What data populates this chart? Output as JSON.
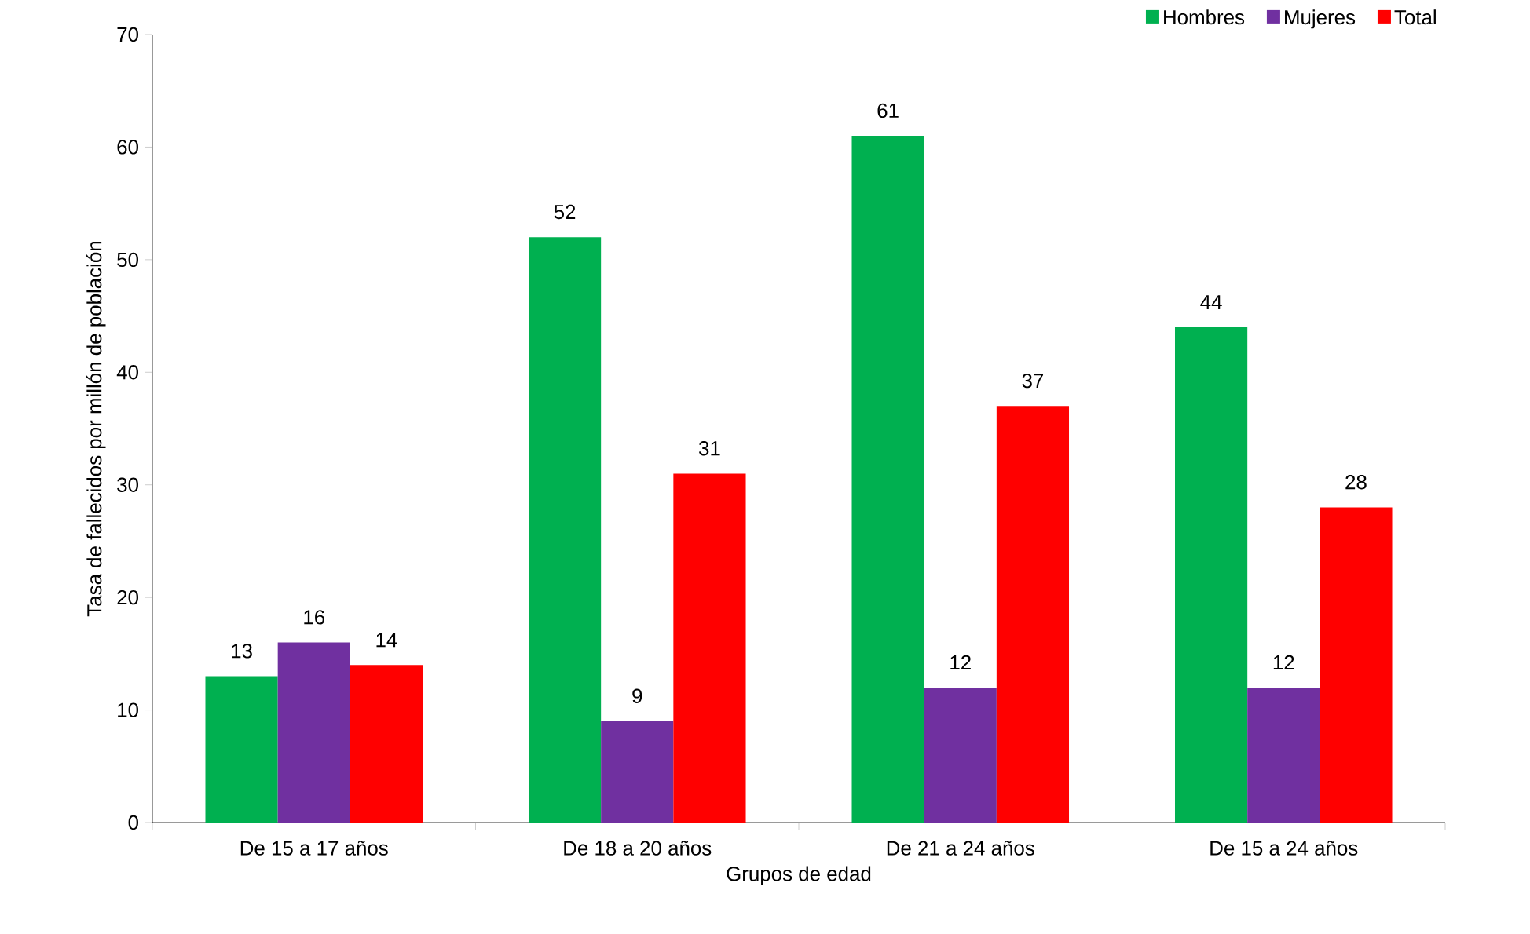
{
  "chart_data": {
    "type": "bar",
    "xlabel": "Grupos de edad",
    "ylabel": "Tasa de fallecidos por millón de población",
    "categories": [
      "De 15 a 17 años",
      "De 18 a 20 años",
      "De 21 a 24 años",
      "De 15 a 24 años"
    ],
    "series": [
      {
        "name": "Hombres",
        "color": "#00b050",
        "values": [
          13,
          52,
          61,
          44
        ]
      },
      {
        "name": "Mujeres",
        "color": "#7030a0",
        "values": [
          16,
          9,
          12,
          12
        ]
      },
      {
        "name": "Total",
        "color": "#ff0000",
        "values": [
          14,
          31,
          37,
          28
        ]
      }
    ],
    "ylim": [
      0,
      70
    ],
    "yticks": [
      0,
      10,
      20,
      30,
      40,
      50,
      60,
      70
    ],
    "data_labels": true,
    "legend": "top right",
    "grid": false
  }
}
